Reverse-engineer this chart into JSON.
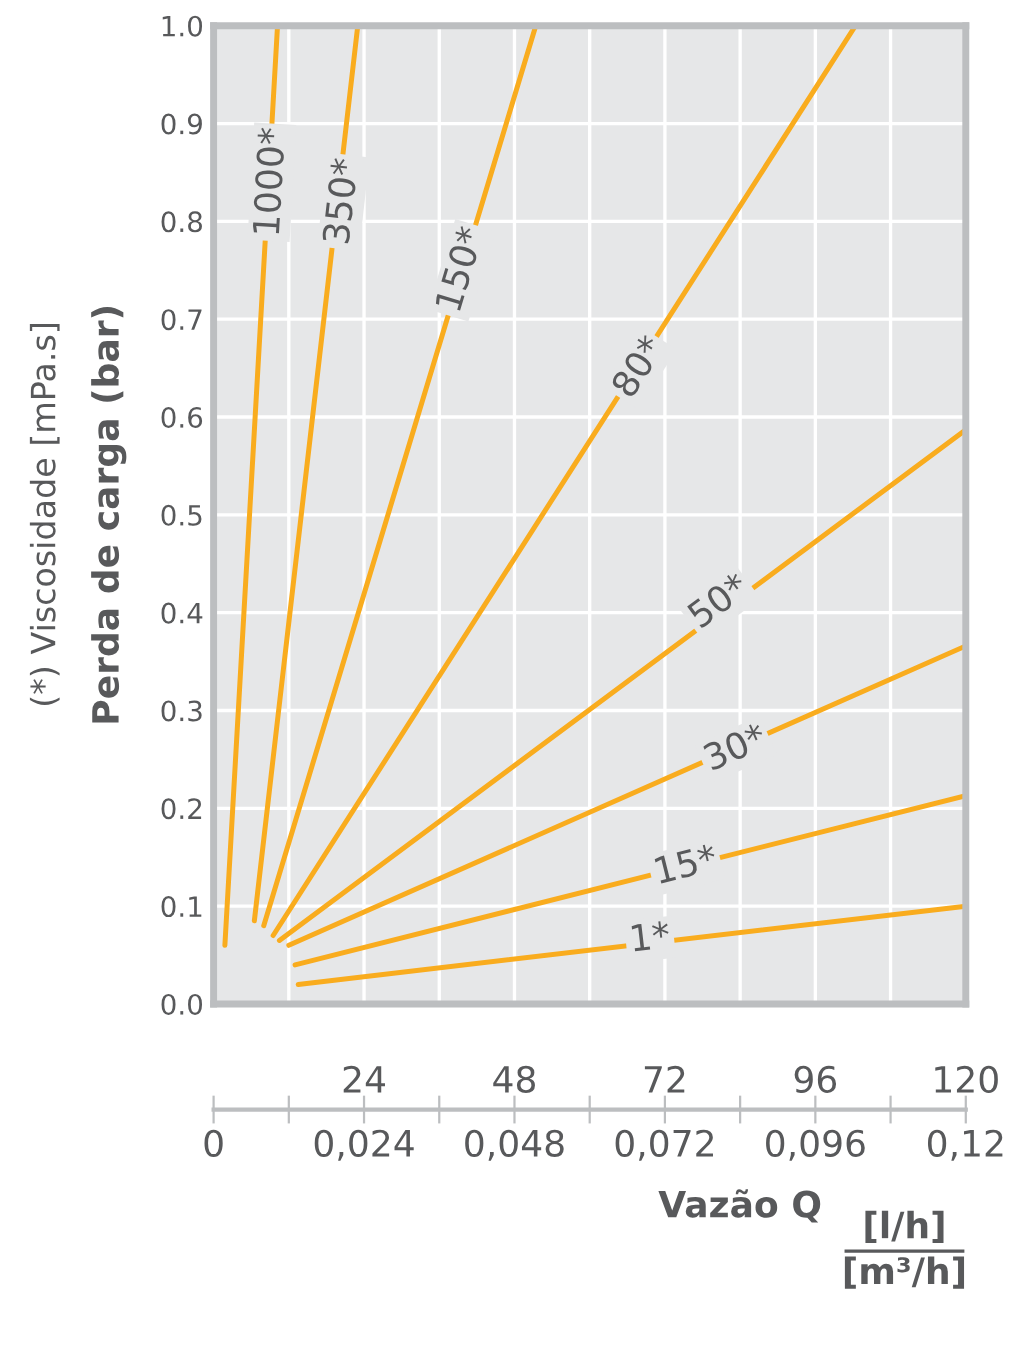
{
  "chart_data": {
    "type": "line",
    "ylabel": "Perda de carga (bar)",
    "xlabel": "Vazão Q",
    "series": [
      {
        "x": [
          1.8,
          10.2
        ],
        "values": [
          0.06,
          1.0
        ],
        "color": "#f9ac1e"
      },
      {
        "x": [
          6.5,
          23.0
        ],
        "values": [
          0.085,
          1.0
        ],
        "color": "#f9ac1e"
      },
      {
        "x": [
          8.0,
          51.4
        ],
        "values": [
          0.08,
          1.0
        ],
        "color": "#f9ac1e"
      },
      {
        "x": [
          9.5,
          102.4
        ],
        "values": [
          0.07,
          1.0
        ],
        "color": "#f9ac1e"
      },
      {
        "x": [
          10.5,
          120
        ],
        "values": [
          0.065,
          0.587
        ],
        "color": "#f9ac1e"
      },
      {
        "x": [
          12.0,
          120
        ],
        "values": [
          0.06,
          0.366
        ],
        "color": "#f9ac1e"
      },
      {
        "x": [
          13.0,
          120
        ],
        "values": [
          0.04,
          0.213
        ],
        "color": "#f9ac1e"
      },
      {
        "x": [
          13.5,
          120
        ],
        "values": [
          0.02,
          0.1
        ],
        "color": "#f9ac1e"
      }
    ],
    "annotations": [
      {
        "text": "1000*",
        "x": 9.3,
        "y": 0.84
      },
      {
        "text": "350*",
        "x": 20.7,
        "y": 0.82
      },
      {
        "text": "150*",
        "x": 39.6,
        "y": 0.75
      },
      {
        "text": "80*",
        "x": 68,
        "y": 0.65
      },
      {
        "text": "50*",
        "x": 80.7,
        "y": 0.41
      },
      {
        "text": "30*",
        "x": 83.3,
        "y": 0.26
      },
      {
        "text": "15*",
        "x": 75.3,
        "y": 0.14
      },
      {
        "text": "1*",
        "x": 69.6,
        "y": 0.066
      },
      "(*) Viscosidade [mPa.s]",
      "[l/h]",
      "[m³/h]"
    ],
    "xlim": [
      0,
      120
    ],
    "xticks": [
      {
        "value": 0,
        "label": null
      },
      {
        "value": 12,
        "label": null
      },
      24,
      {
        "value": 36,
        "label": null
      },
      48,
      {
        "value": 60,
        "label": null
      },
      72,
      {
        "value": 84,
        "label": null
      },
      96,
      {
        "value": 108,
        "label": null
      },
      120
    ],
    "x2lim": [
      0,
      0.12
    ],
    "x2ticks": [
      {
        "value": 0,
        "label": "0"
      },
      {
        "value": 0.012,
        "label": null
      },
      {
        "value": 0.024,
        "label": "0,024"
      },
      {
        "value": 0.036,
        "label": null
      },
      {
        "value": 0.048,
        "label": "0,048"
      },
      {
        "value": 0.06,
        "label": null
      },
      {
        "value": 0.072,
        "label": "0,072"
      },
      {
        "value": 0.084,
        "label": null
      },
      {
        "value": 0.096,
        "label": "0,096"
      },
      {
        "value": 0.108,
        "label": null
      },
      {
        "value": 0.12,
        "label": "0,12"
      }
    ],
    "ylim": [
      0,
      1.0
    ],
    "yticks": [
      {
        "value": 0,
        "label": "0.0"
      },
      0.1,
      0.2,
      0.3,
      0.4,
      0.5,
      0.6,
      0.7,
      0.8,
      0.9,
      {
        "value": 1.0,
        "label": "1.0"
      }
    ],
    "grid": true,
    "marker": "none",
    "line_style": "solid",
    "legend": false
  }
}
